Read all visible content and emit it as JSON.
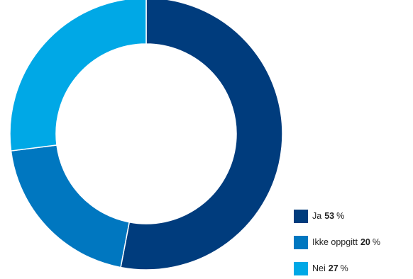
{
  "chart_data": {
    "type": "pie",
    "donut": true,
    "title": "",
    "unit": "%",
    "slices": [
      {
        "label": "Ja",
        "value": 53,
        "color": "#003c7d"
      },
      {
        "label": "Ikke oppgitt",
        "value": 20,
        "color": "#0077c0"
      },
      {
        "label": "Nei",
        "value": 27,
        "color": "#00a8e6"
      }
    ],
    "legend_position": "bottom-right"
  }
}
